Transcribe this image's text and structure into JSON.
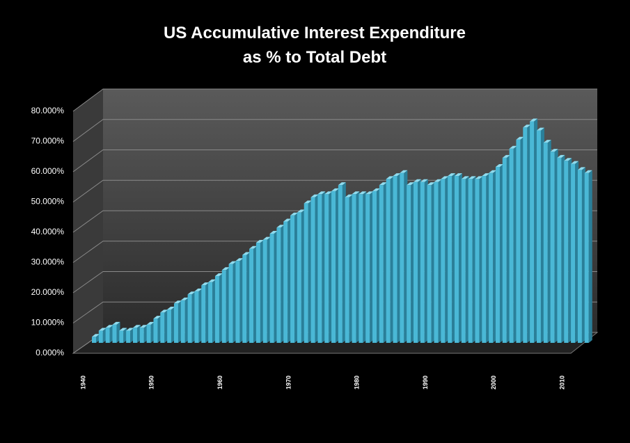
{
  "chart_data": {
    "type": "bar3d",
    "title": [
      "US Accumulative Interest Expenditure",
      "as % to Total Debt"
    ],
    "categories": [
      "1940",
      null,
      null,
      null,
      null,
      null,
      null,
      null,
      null,
      null,
      "1950",
      null,
      null,
      null,
      null,
      null,
      null,
      null,
      null,
      null,
      "1960",
      null,
      null,
      null,
      null,
      null,
      null,
      null,
      null,
      null,
      "1970",
      null,
      null,
      null,
      null,
      null,
      null,
      null,
      null,
      null,
      "1980",
      null,
      null,
      null,
      null,
      null,
      null,
      null,
      null,
      null,
      "1990",
      null,
      null,
      null,
      null,
      null,
      null,
      null,
      null,
      null,
      "2000",
      null,
      null,
      null,
      null,
      null,
      null,
      null,
      null,
      null,
      "2010",
      null,
      null
    ],
    "values": [
      2,
      4,
      5,
      6,
      4,
      4,
      5,
      5,
      6,
      8,
      10,
      11,
      13,
      14,
      16,
      17,
      19,
      20,
      22,
      24,
      26,
      27,
      29,
      31,
      33,
      34,
      36,
      38,
      40,
      42,
      43,
      46,
      48,
      49,
      49,
      50,
      52,
      48,
      49,
      49,
      49,
      50,
      52,
      54,
      55,
      56,
      52,
      53,
      53,
      52,
      53,
      54,
      55,
      55,
      54,
      54,
      54,
      55,
      56,
      58,
      61,
      64,
      67,
      71,
      73,
      70,
      66,
      63,
      61,
      60,
      59,
      57,
      56
    ],
    "color": "#4ab8d6",
    "ylim": [
      0,
      80
    ],
    "yticks": [
      {
        "value": 0,
        "label": "0.000%"
      },
      {
        "value": 10,
        "label": "10.000%"
      },
      {
        "value": 20,
        "label": "20.000%"
      },
      {
        "value": 30,
        "label": "30.000%"
      },
      {
        "value": 40,
        "label": "40.000%"
      },
      {
        "value": 50,
        "label": "50.000%"
      },
      {
        "value": 60,
        "label": "60.000%"
      },
      {
        "value": 70,
        "label": "70.000%"
      },
      {
        "value": 80,
        "label": "80.000%"
      }
    ],
    "grid": true
  }
}
